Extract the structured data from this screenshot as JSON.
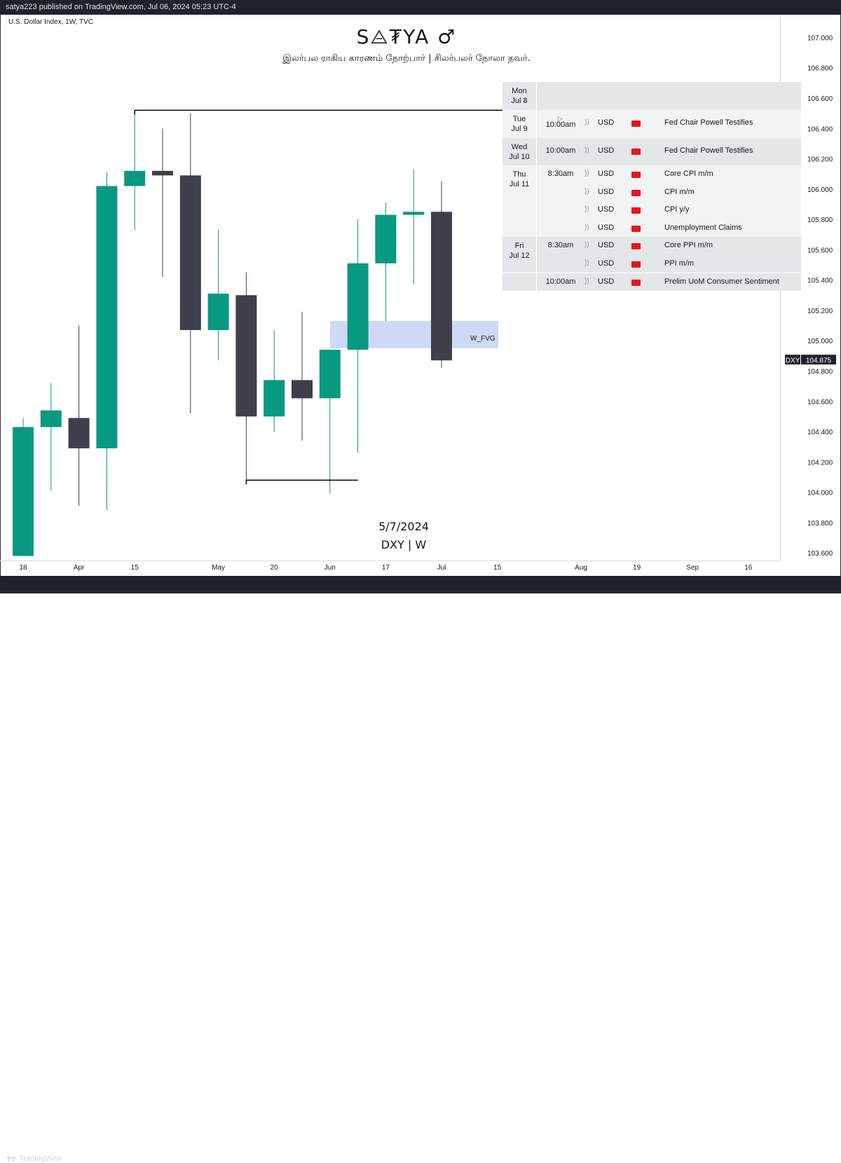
{
  "header": {
    "published": "satya223 published on TradingView.com, Jul 06, 2024 05:23 UTC-4",
    "symbol_line": "U.S. Dollar Index, 1W, TVC"
  },
  "watermark": {
    "title": "S⨺₮YA ♂",
    "subtitle": "இலர்பல ராகிய காரணம் நோற்பார் | சிலர்பலர் நோலா தவர்.",
    "date": "5/7/2024",
    "symbol": "DXY | W"
  },
  "footer": {
    "brand": "TradingView"
  },
  "zone": {
    "label": "W_FVG",
    "top": 105.13,
    "bottom": 104.95
  },
  "price_tag": {
    "symbol": "DXY",
    "value": "104.875",
    "price": 104.875
  },
  "calendar": {
    "days": [
      {
        "day": "Mon",
        "date": "Jul 8",
        "events": []
      },
      {
        "day": "Tue",
        "date": "Jul 9",
        "events": [
          {
            "time": "10:00am",
            "currency": "USD",
            "name": "Fed Chair Powell Testifies"
          }
        ]
      },
      {
        "day": "Wed",
        "date": "Jul 10",
        "events": [
          {
            "time": "10:00am",
            "currency": "USD",
            "name": "Fed Chair Powell Testifies"
          }
        ]
      },
      {
        "day": "Thu",
        "date": "Jul 11",
        "events": [
          {
            "time": "8:30am",
            "currency": "USD",
            "name": "Core CPI m/m"
          },
          {
            "time": "",
            "currency": "USD",
            "name": "CPI m/m"
          },
          {
            "time": "",
            "currency": "USD",
            "name": "CPI y/y"
          },
          {
            "time": "",
            "currency": "USD",
            "name": "Unemployment Claims"
          }
        ]
      },
      {
        "day": "Fri",
        "date": "Jul 12",
        "events": [
          {
            "time": "8:30am",
            "currency": "USD",
            "name": "Core PPI m/m"
          },
          {
            "time": "",
            "currency": "USD",
            "name": "PPI m/m"
          },
          {
            "time": "10:00am",
            "currency": "USD",
            "name": "Prelim UoM Consumer Sentiment"
          }
        ]
      }
    ],
    "colors": {
      "flag": "#e4161b"
    }
  },
  "chart_data": {
    "type": "candlestick",
    "ylim": [
      103.55,
      107.15
    ],
    "y_ticks": [
      "107.000",
      "106.800",
      "106.600",
      "106.400",
      "106.200",
      "106.000",
      "105.800",
      "105.600",
      "105.400",
      "105.200",
      "105.000",
      "104.800",
      "104.600",
      "104.400",
      "104.200",
      "104.000",
      "103.800",
      "103.600"
    ],
    "y_tick_values": [
      107.0,
      106.8,
      106.6,
      106.4,
      106.2,
      106.0,
      105.8,
      105.6,
      105.4,
      105.2,
      105.0,
      104.8,
      104.6,
      104.4,
      104.2,
      104.0,
      103.8,
      103.6
    ],
    "x_ticks": [
      {
        "label": "18",
        "week": 0
      },
      {
        "label": "Apr",
        "week": 2
      },
      {
        "label": "15",
        "week": 4
      },
      {
        "label": "May",
        "week": 7
      },
      {
        "label": "20",
        "week": 9
      },
      {
        "label": "Jun",
        "week": 11
      },
      {
        "label": "17",
        "week": 13
      },
      {
        "label": "Jul",
        "week": 15
      },
      {
        "label": "15",
        "week": 17
      },
      {
        "label": "Aug",
        "week": 20
      },
      {
        "label": "19",
        "week": 22
      },
      {
        "label": "Sep",
        "week": 24
      },
      {
        "label": "16",
        "week": 26
      }
    ],
    "candles": [
      {
        "o": 103.58,
        "h": 104.49,
        "l": 103.58,
        "c": 104.43
      },
      {
        "o": 104.43,
        "h": 104.72,
        "l": 104.01,
        "c": 104.54
      },
      {
        "o": 104.49,
        "h": 105.1,
        "l": 103.91,
        "c": 104.29
      },
      {
        "o": 104.29,
        "h": 106.11,
        "l": 103.88,
        "c": 106.02
      },
      {
        "o": 106.02,
        "h": 106.52,
        "l": 105.73,
        "c": 106.12
      },
      {
        "o": 106.12,
        "h": 106.4,
        "l": 105.42,
        "c": 106.09
      },
      {
        "o": 106.09,
        "h": 106.5,
        "l": 104.52,
        "c": 105.07
      },
      {
        "o": 105.07,
        "h": 105.73,
        "l": 104.87,
        "c": 105.31
      },
      {
        "o": 105.3,
        "h": 105.45,
        "l": 104.08,
        "c": 104.5
      },
      {
        "o": 104.5,
        "h": 105.07,
        "l": 104.4,
        "c": 104.74
      },
      {
        "o": 104.74,
        "h": 105.19,
        "l": 104.34,
        "c": 104.62
      },
      {
        "o": 104.62,
        "h": 104.94,
        "l": 103.99,
        "c": 104.94
      },
      {
        "o": 104.94,
        "h": 105.8,
        "l": 104.26,
        "c": 105.51
      },
      {
        "o": 105.51,
        "h": 105.91,
        "l": 105.13,
        "c": 105.83
      },
      {
        "o": 105.83,
        "h": 106.13,
        "l": 105.37,
        "c": 105.85
      },
      {
        "o": 105.85,
        "h": 106.05,
        "l": 104.82,
        "c": 104.87
      }
    ],
    "levels": [
      {
        "name": "resistance",
        "price": 106.52,
        "from_week": 4,
        "to_week": 17.5
      },
      {
        "name": "support",
        "price": 104.08,
        "from_week": 8,
        "to_week": 12
      }
    ],
    "colors": {
      "up": "#089981",
      "down": "#3d3f4a",
      "fvg": "#cfd9f5",
      "line": "#000000"
    }
  }
}
